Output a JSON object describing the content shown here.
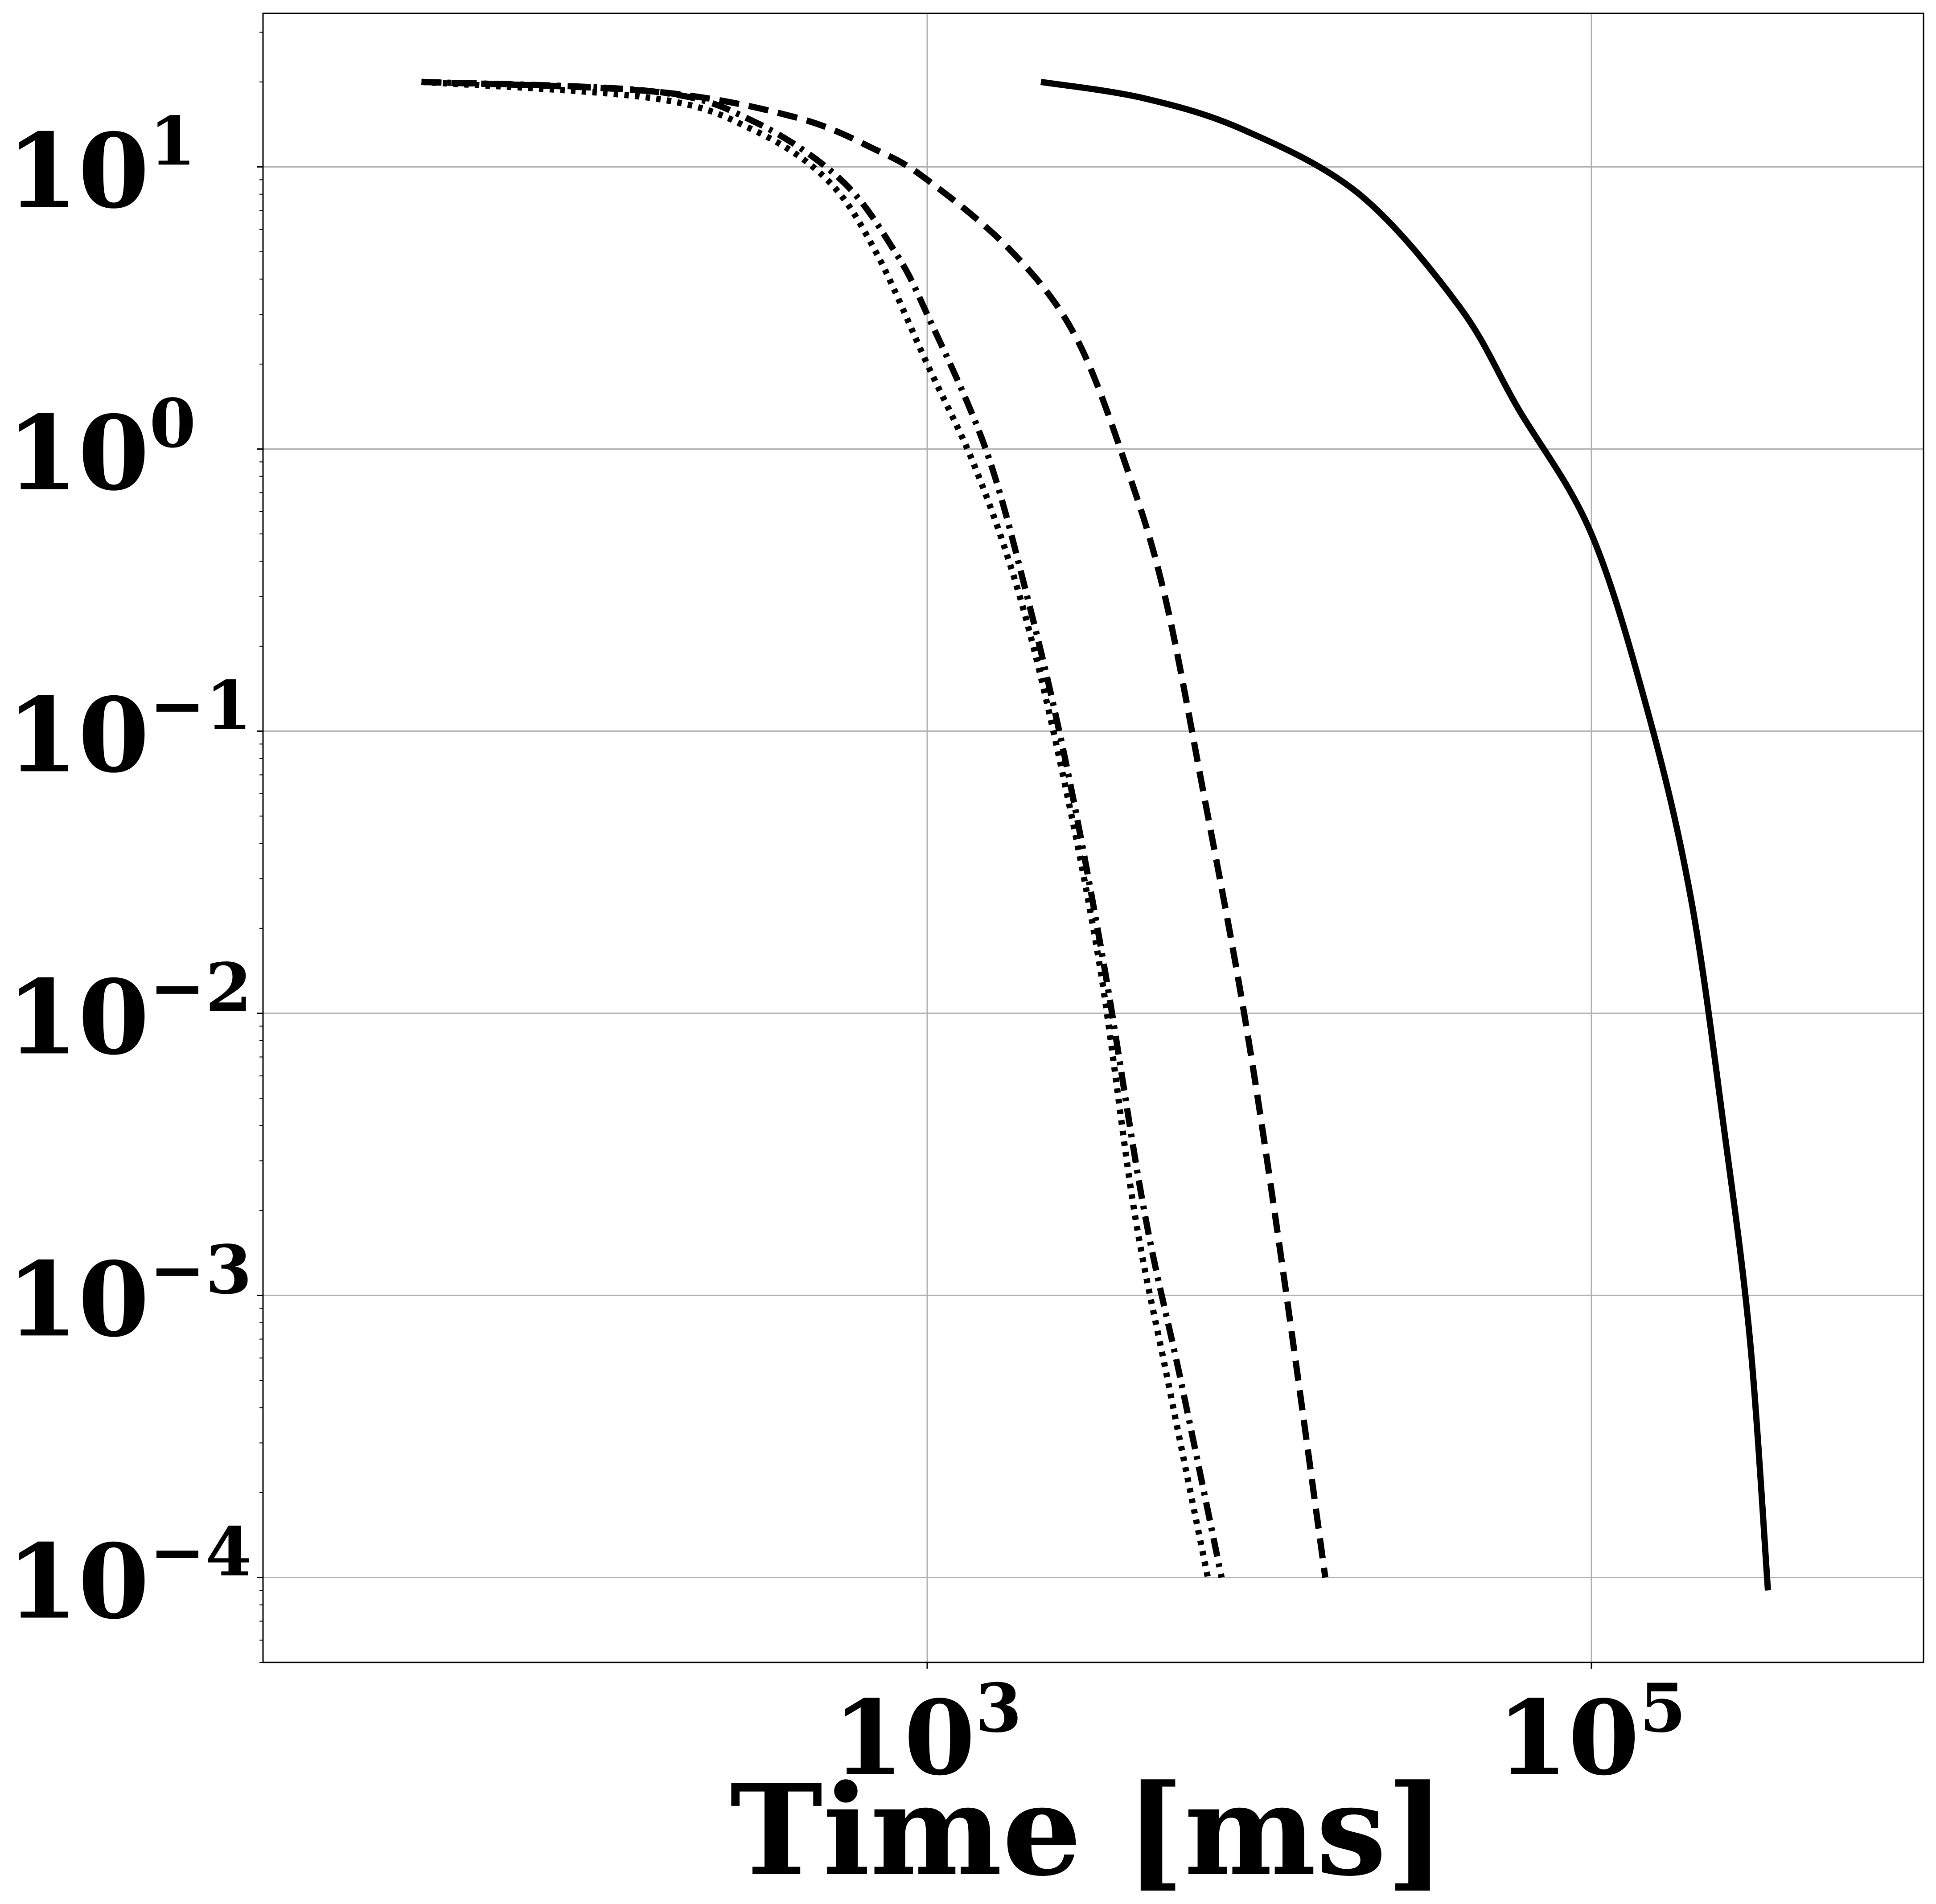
{
  "chart_data": {
    "type": "line",
    "title": "",
    "xlabel": "Time [ms]",
    "ylabel": "",
    "x_scale": "log",
    "y_scale": "log",
    "xlim": [
      10,
      1000000
    ],
    "ylim": [
      5e-05,
      35
    ],
    "grid": true,
    "x_ticks": [
      {
        "value": 1000,
        "base": "10",
        "exp": "3"
      },
      {
        "value": 100000,
        "base": "10",
        "exp": "5"
      }
    ],
    "y_ticks": [
      {
        "value": 10,
        "base": "10",
        "exp": "1"
      },
      {
        "value": 1,
        "base": "10",
        "exp": "0"
      },
      {
        "value": 0.1,
        "base": "10",
        "exp": "−1"
      },
      {
        "value": 0.01,
        "base": "10",
        "exp": "−2"
      },
      {
        "value": 0.001,
        "base": "10",
        "exp": "−3"
      },
      {
        "value": 0.0001,
        "base": "10",
        "exp": "−4"
      }
    ],
    "series": [
      {
        "style": "solid",
        "x": [
          2200,
          4500,
          9000,
          20000,
          40000,
          60000,
          100000,
          150000,
          200000,
          250000,
          300000,
          340000
        ],
        "y": [
          20,
          17.5,
          13.5,
          8.0,
          3.2,
          1.4,
          0.5,
          0.11,
          0.025,
          0.004,
          0.0007,
          9e-05
        ]
      },
      {
        "style": "dashed",
        "x": [
          30,
          150,
          400,
          700,
          1000,
          1800,
          2800,
          4000,
          5200,
          6800,
          9000,
          11500,
          15800
        ],
        "y": [
          20,
          18.5,
          15,
          11.5,
          9.0,
          5.0,
          2.5,
          0.85,
          0.3,
          0.06,
          0.01,
          0.0015,
          0.0001
        ]
      },
      {
        "style": "dash-dot",
        "x": [
          30,
          150,
          300,
          550,
          800,
          1000,
          1500,
          2000,
          2600,
          3400,
          4500,
          5800,
          7700
        ],
        "y": [
          20,
          18.5,
          14.5,
          9.0,
          5.0,
          3.0,
          1.0,
          0.3,
          0.08,
          0.015,
          0.002,
          0.0005,
          0.0001
        ]
      },
      {
        "style": "dotted",
        "x": [
          30,
          150,
          300,
          500,
          700,
          1000,
          1400,
          1900,
          2500,
          3300,
          4200,
          5300,
          7000
        ],
        "y": [
          20,
          17.5,
          13.5,
          9.0,
          5.0,
          2.0,
          0.85,
          0.3,
          0.08,
          0.015,
          0.002,
          0.0005,
          0.0001
        ]
      }
    ]
  }
}
